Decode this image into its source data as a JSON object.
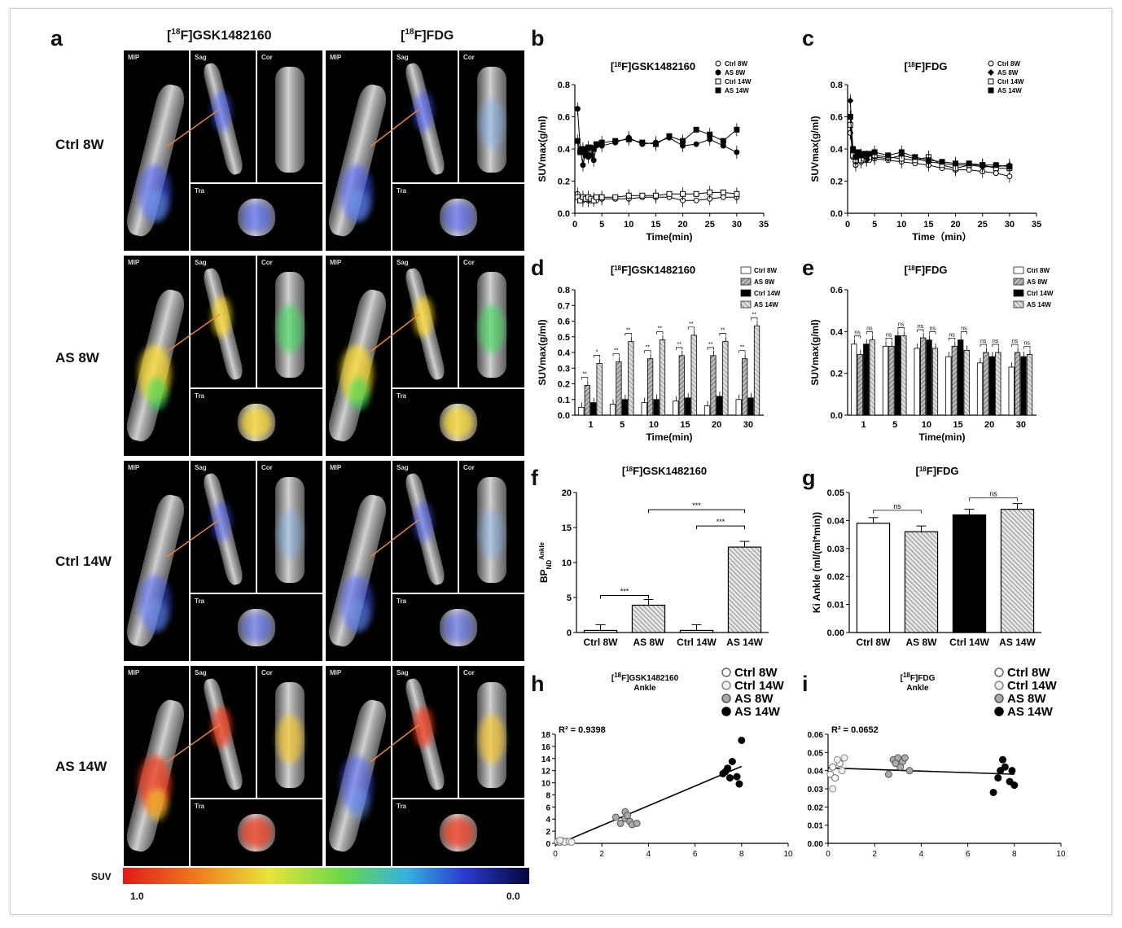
{
  "panel_letters": {
    "a": "a",
    "b": "b",
    "c": "c",
    "d": "d",
    "e": "e",
    "f": "f",
    "g": "g",
    "h": "h",
    "i": "i"
  },
  "image_panel": {
    "col_titles": [
      "[18F]GSK1482160",
      "[18F]FDG"
    ],
    "row_labels": [
      "Ctrl 8W",
      "AS 8W",
      "Ctrl 14W",
      "AS 14W"
    ],
    "view_labels": {
      "mip": "MIP",
      "sag": "Sag",
      "cor": "Cor",
      "tra": "Tra"
    },
    "scale_label": "SUV",
    "scale_max": "1.0",
    "scale_min": "0.0"
  },
  "chart_data": [
    {
      "id": "b",
      "type": "line",
      "title": "[18F]GSK1482160",
      "xlabel": "Time(min)",
      "ylabel": "SUVmax(g/ml)",
      "xlim": [
        0,
        35
      ],
      "ylim": [
        0,
        0.8
      ],
      "xticks": [
        0,
        5,
        10,
        15,
        20,
        25,
        30,
        35
      ],
      "yticks": [
        0.0,
        0.2,
        0.4,
        0.6,
        0.8
      ],
      "legend": "top-right",
      "x": [
        0.5,
        1,
        1.5,
        2,
        2.5,
        3,
        3.5,
        4,
        5,
        7.5,
        10,
        12.5,
        15,
        17.5,
        20,
        22.5,
        25,
        27.5,
        30
      ],
      "series": [
        {
          "name": "Ctrl 8W",
          "values": [
            0.12,
            0.09,
            0.08,
            0.09,
            0.08,
            0.08,
            0.09,
            0.08,
            0.09,
            0.09,
            0.09,
            0.1,
            0.1,
            0.1,
            0.08,
            0.08,
            0.09,
            0.1,
            0.1
          ],
          "marker": "circle-open"
        },
        {
          "name": "AS 8W",
          "values": [
            0.65,
            0.4,
            0.3,
            0.38,
            0.35,
            0.41,
            0.33,
            0.42,
            0.42,
            0.44,
            0.47,
            0.43,
            0.44,
            0.47,
            0.42,
            0.43,
            0.46,
            0.42,
            0.38
          ],
          "marker": "circle-filled"
        },
        {
          "name": "Ctrl 14W",
          "values": [
            0.1,
            0.08,
            0.1,
            0.09,
            0.1,
            0.09,
            0.08,
            0.1,
            0.1,
            0.1,
            0.11,
            0.11,
            0.11,
            0.12,
            0.12,
            0.12,
            0.13,
            0.13,
            0.12
          ],
          "marker": "square-open"
        },
        {
          "name": "AS 14W",
          "values": [
            0.45,
            0.38,
            0.4,
            0.36,
            0.41,
            0.36,
            0.4,
            0.43,
            0.44,
            0.45,
            0.46,
            0.44,
            0.43,
            0.48,
            0.45,
            0.52,
            0.49,
            0.45,
            0.52
          ],
          "marker": "square-filled"
        }
      ]
    },
    {
      "id": "c",
      "type": "line",
      "title": "[18F]FDG",
      "xlabel": "Time（min）",
      "ylabel": "SUVmax(g/ml)",
      "xlim": [
        0,
        35
      ],
      "ylim": [
        0,
        0.8
      ],
      "xticks": [
        0,
        5,
        10,
        15,
        20,
        25,
        30,
        35
      ],
      "yticks": [
        0.0,
        0.2,
        0.4,
        0.6,
        0.8
      ],
      "legend": "top-right",
      "x": [
        0.5,
        1,
        1.5,
        2,
        2.5,
        3,
        3.5,
        4,
        5,
        7.5,
        10,
        12.5,
        15,
        17.5,
        20,
        22.5,
        25,
        27.5,
        30
      ],
      "series": [
        {
          "name": "Ctrl 8W",
          "values": [
            0.5,
            0.35,
            0.3,
            0.34,
            0.32,
            0.33,
            0.34,
            0.33,
            0.34,
            0.33,
            0.32,
            0.31,
            0.3,
            0.28,
            0.27,
            0.27,
            0.26,
            0.25,
            0.23
          ],
          "marker": "circle-open"
        },
        {
          "name": "AS 8W",
          "values": [
            0.7,
            0.38,
            0.32,
            0.36,
            0.34,
            0.35,
            0.33,
            0.36,
            0.35,
            0.34,
            0.36,
            0.34,
            0.32,
            0.31,
            0.3,
            0.3,
            0.29,
            0.29,
            0.3
          ],
          "marker": "diamond-filled"
        },
        {
          "name": "Ctrl 14W",
          "values": [
            0.55,
            0.36,
            0.33,
            0.35,
            0.33,
            0.34,
            0.35,
            0.35,
            0.36,
            0.35,
            0.34,
            0.33,
            0.35,
            0.3,
            0.28,
            0.3,
            0.3,
            0.28,
            0.28
          ],
          "marker": "square-open"
        },
        {
          "name": "AS 14W",
          "values": [
            0.6,
            0.4,
            0.35,
            0.38,
            0.36,
            0.37,
            0.35,
            0.37,
            0.38,
            0.36,
            0.38,
            0.35,
            0.33,
            0.32,
            0.31,
            0.31,
            0.3,
            0.3,
            0.29
          ],
          "marker": "square-filled"
        }
      ]
    },
    {
      "id": "d",
      "type": "bar",
      "title": "[18F]GSK1482160",
      "xlabel": "Time(min)",
      "ylabel": "SUVmax(g/ml)",
      "categories": [
        "1",
        "5",
        "10",
        "15",
        "20",
        "30"
      ],
      "ylim": [
        0,
        0.8
      ],
      "yticks": [
        0.0,
        0.1,
        0.2,
        0.3,
        0.4,
        0.5,
        0.6,
        0.7,
        0.8
      ],
      "legend": "top-right",
      "series": [
        {
          "name": "Ctrl 8W",
          "values": [
            0.05,
            0.07,
            0.08,
            0.09,
            0.06,
            0.1
          ],
          "fill": "white"
        },
        {
          "name": "AS 8W",
          "values": [
            0.19,
            0.34,
            0.36,
            0.38,
            0.38,
            0.36
          ],
          "fill": "hatch"
        },
        {
          "name": "Ctrl 14W",
          "values": [
            0.08,
            0.1,
            0.1,
            0.11,
            0.12,
            0.11
          ],
          "fill": "black"
        },
        {
          "name": "AS 14W",
          "values": [
            0.33,
            0.47,
            0.48,
            0.51,
            0.47,
            0.57
          ],
          "fill": "hatch-light"
        }
      ],
      "annotations": [
        "**",
        "*",
        "**",
        "**",
        "**",
        "**",
        "**",
        "**",
        "**",
        "**",
        "**",
        "**"
      ]
    },
    {
      "id": "e",
      "type": "bar",
      "title": "[18F]FDG",
      "xlabel": "Time(min)",
      "ylabel": "SUVmax(g/ml)",
      "categories": [
        "1",
        "5",
        "10",
        "15",
        "20",
        "30"
      ],
      "ylim": [
        0,
        0.6
      ],
      "yticks": [
        0.0,
        0.2,
        0.4,
        0.6
      ],
      "legend": "top-right",
      "series": [
        {
          "name": "Ctrl 8W",
          "values": [
            0.34,
            0.33,
            0.32,
            0.28,
            0.25,
            0.23
          ],
          "fill": "white"
        },
        {
          "name": "AS 8W",
          "values": [
            0.29,
            0.33,
            0.37,
            0.33,
            0.3,
            0.3
          ],
          "fill": "hatch"
        },
        {
          "name": "Ctrl 14W",
          "values": [
            0.34,
            0.38,
            0.36,
            0.36,
            0.28,
            0.28
          ],
          "fill": "black"
        },
        {
          "name": "AS 14W",
          "values": [
            0.36,
            0.38,
            0.32,
            0.31,
            0.3,
            0.29
          ],
          "fill": "hatch-light"
        }
      ],
      "annotations": [
        "ns"
      ]
    },
    {
      "id": "f",
      "type": "bar",
      "title": "[18F]GSK1482160",
      "ylabel": "BPND Ankle",
      "ylim": [
        0,
        20
      ],
      "yticks": [
        0,
        5,
        10,
        15,
        20
      ],
      "categories": [
        "Ctrl 8W",
        "AS 8W",
        "Ctrl 14W",
        "AS 14W"
      ],
      "values": [
        0.3,
        3.9,
        0.3,
        12.2
      ],
      "annotations": [
        "***",
        "***",
        "***"
      ]
    },
    {
      "id": "g",
      "type": "bar",
      "title": "[18F]FDG",
      "ylabel": "Ki Ankle (ml/(ml*min))",
      "ylim": [
        0,
        0.05
      ],
      "yticks": [
        "0.00",
        "0.01",
        "0.02",
        "0.03",
        "0.04",
        "0.05"
      ],
      "categories": [
        "Ctrl 8W",
        "AS 8W",
        "Ctrl 14W",
        "AS 14W"
      ],
      "values": [
        0.039,
        0.036,
        0.042,
        0.044
      ],
      "annotations": [
        "ns",
        "ns"
      ]
    },
    {
      "id": "h",
      "type": "scatter",
      "title": "[18F]GSK1482160",
      "subtitle": "Ankle",
      "annotation": "R² = 0.9398",
      "xlim": [
        0,
        10
      ],
      "ylim": [
        0,
        18
      ],
      "xticks": [
        0,
        2,
        4,
        6,
        8,
        10
      ],
      "yticks": [
        0,
        2,
        4,
        6,
        8,
        10,
        12,
        14,
        16,
        18
      ],
      "legend": "top-right",
      "series": [
        {
          "name": "Ctrl 8W",
          "points": [
            [
              0.1,
              0.3
            ],
            [
              0.2,
              0.2
            ],
            [
              0.3,
              0.4
            ],
            [
              0.5,
              0.3
            ]
          ]
        },
        {
          "name": "Ctrl 14W",
          "points": [
            [
              0.4,
              0.2
            ],
            [
              0.6,
              0.3
            ],
            [
              0.7,
              0.2
            ],
            [
              0.2,
              0.5
            ]
          ]
        },
        {
          "name": "AS 8W",
          "points": [
            [
              2.6,
              4.3
            ],
            [
              3.0,
              5.2
            ],
            [
              3.0,
              4.1
            ],
            [
              3.2,
              3.6
            ],
            [
              2.8,
              3.3
            ],
            [
              3.3,
              3.1
            ],
            [
              3.5,
              3.3
            ],
            [
              3.1,
              4.6
            ]
          ]
        },
        {
          "name": "AS 14W",
          "points": [
            [
              7.2,
              11.5
            ],
            [
              7.4,
              12.4
            ],
            [
              7.6,
              13.5
            ],
            [
              7.5,
              10.8
            ],
            [
              7.8,
              11.0
            ],
            [
              8.0,
              17.0
            ],
            [
              7.9,
              9.8
            ],
            [
              7.3,
              11.8
            ]
          ]
        }
      ],
      "fit": [
        [
          0,
          -0.3
        ],
        [
          8,
          12.7
        ]
      ]
    },
    {
      "id": "i",
      "type": "scatter",
      "title": "[18F]FDG",
      "subtitle": "Ankle",
      "annotation": "R² = 0.0652",
      "xlim": [
        0,
        10
      ],
      "ylim": [
        0,
        0.06
      ],
      "xticks": [
        0,
        2,
        4,
        6,
        8,
        10
      ],
      "yticks": [
        "0.00",
        "0.01",
        "0.02",
        "0.03",
        "0.04",
        "0.05",
        "0.06"
      ],
      "legend": "top-right",
      "series": [
        {
          "name": "Ctrl 8W",
          "points": [
            [
              0.1,
              0.038
            ],
            [
              0.2,
              0.042
            ],
            [
              0.3,
              0.036
            ],
            [
              0.5,
              0.044
            ]
          ]
        },
        {
          "name": "Ctrl 14W",
          "points": [
            [
              0.2,
              0.03
            ],
            [
              0.4,
              0.046
            ],
            [
              0.6,
              0.04
            ],
            [
              0.7,
              0.047
            ]
          ]
        },
        {
          "name": "AS 8W",
          "points": [
            [
              2.6,
              0.038
            ],
            [
              2.8,
              0.046
            ],
            [
              3.0,
              0.047
            ],
            [
              3.1,
              0.042
            ],
            [
              3.2,
              0.045
            ],
            [
              3.3,
              0.047
            ],
            [
              3.5,
              0.04
            ],
            [
              2.9,
              0.044
            ]
          ]
        },
        {
          "name": "AS 14W",
          "points": [
            [
              7.1,
              0.028
            ],
            [
              7.3,
              0.036
            ],
            [
              7.5,
              0.046
            ],
            [
              7.6,
              0.042
            ],
            [
              7.8,
              0.034
            ],
            [
              8.0,
              0.032
            ],
            [
              7.9,
              0.04
            ],
            [
              7.4,
              0.04
            ]
          ]
        }
      ],
      "fit": [
        [
          0,
          0.0415
        ],
        [
          8,
          0.038
        ]
      ]
    }
  ]
}
